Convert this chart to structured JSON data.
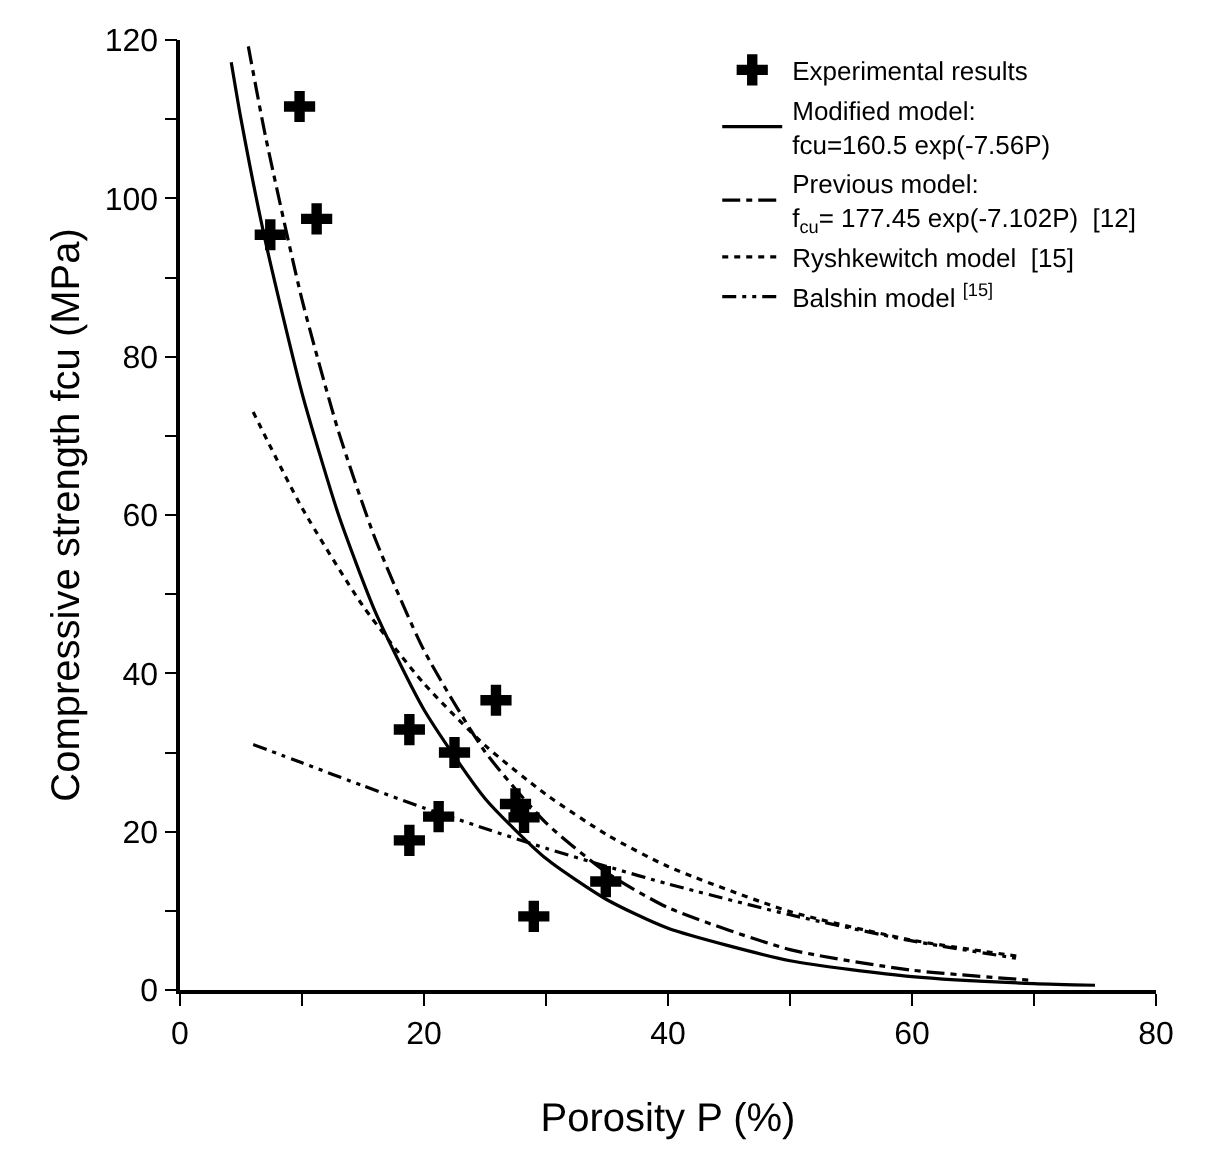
{
  "chart_data": {
    "type": "line",
    "xlabel": "Porosity P (%)",
    "ylabel": "Compressive strength fcu (MPa)",
    "xlim": [
      0,
      80
    ],
    "xticks": [
      0,
      {
        "value": 10,
        "label": null
      },
      20,
      {
        "value": 30,
        "label": null
      },
      40,
      {
        "value": 50,
        "label": null
      },
      60,
      {
        "value": 70,
        "label": null
      },
      80
    ],
    "ylim": [
      0,
      120
    ],
    "yticks": [
      0,
      {
        "value": 10,
        "label": null
      },
      20,
      {
        "value": 30,
        "label": null
      },
      40,
      {
        "value": 50,
        "label": null
      },
      60,
      {
        "value": 70,
        "label": null
      },
      80,
      {
        "value": 90,
        "label": null
      },
      100,
      {
        "value": 110,
        "label": null
      },
      120
    ],
    "grid": false,
    "legend": "top right",
    "series": [
      {
        "name": "Experimental results",
        "type": "scatter",
        "marker": "cross",
        "color": "#000000",
        "x": [
          9.8,
          7.4,
          11.2,
          25.9,
          18.8,
          22.5,
          21.2,
          18.8,
          27.5,
          28.2,
          34.9,
          29.0
        ],
        "values": [
          111.6,
          95.4,
          97.4,
          36.6,
          32.9,
          30.0,
          21.9,
          18.9,
          23.5,
          21.8,
          13.7,
          9.3
        ]
      },
      {
        "name": "Modified model:\nfcu=160.5 exp(-7.56P)",
        "type": "line",
        "line_style": "solid",
        "color": "#000000",
        "x": [
          4.2,
          5,
          7,
          10,
          13,
          16,
          20,
          25,
          30,
          35,
          40,
          50,
          60,
          70,
          75
        ],
        "values": [
          117.2,
          110.0,
          94.6,
          75.4,
          60.0,
          47.8,
          35.4,
          24.2,
          16.6,
          11.4,
          7.8,
          3.7,
          1.7,
          0.8,
          0.6
        ]
      },
      {
        "name": "Previous model:\nf$_{cu}$= 177.45 exp(-7.102P)  [12]",
        "type": "line",
        "line_style": "dashdot",
        "color": "#000000",
        "x": [
          5.6,
          7,
          10,
          13,
          16,
          20,
          25,
          30,
          35,
          40,
          50,
          60,
          70
        ],
        "values": [
          119.2,
          107.9,
          87.2,
          70.5,
          57.0,
          42.9,
          30.1,
          21.1,
          14.8,
          10.4,
          5.1,
          2.5,
          1.2
        ]
      },
      {
        "name": "Ryshkewitch model  [15]",
        "type": "line",
        "line_style": "dotted",
        "color": "#000000",
        "x": [
          6,
          10,
          15,
          20,
          25,
          30,
          35,
          40,
          50,
          60,
          69
        ],
        "values": [
          73.0,
          60.9,
          48.5,
          38.7,
          30.9,
          24.7,
          19.6,
          15.6,
          9.9,
          6.3,
          4.2
        ]
      },
      {
        "name": "Balshin model $^{[15]}$",
        "type": "line",
        "line_style": "dashdotdot",
        "color": "#000000",
        "x": [
          6,
          10,
          15,
          20,
          25,
          30,
          35,
          40,
          50,
          60,
          69
        ],
        "values": [
          31.0,
          28.7,
          25.8,
          23.0,
          20.4,
          17.9,
          15.6,
          13.4,
          9.5,
          6.2,
          3.9
        ]
      }
    ]
  }
}
